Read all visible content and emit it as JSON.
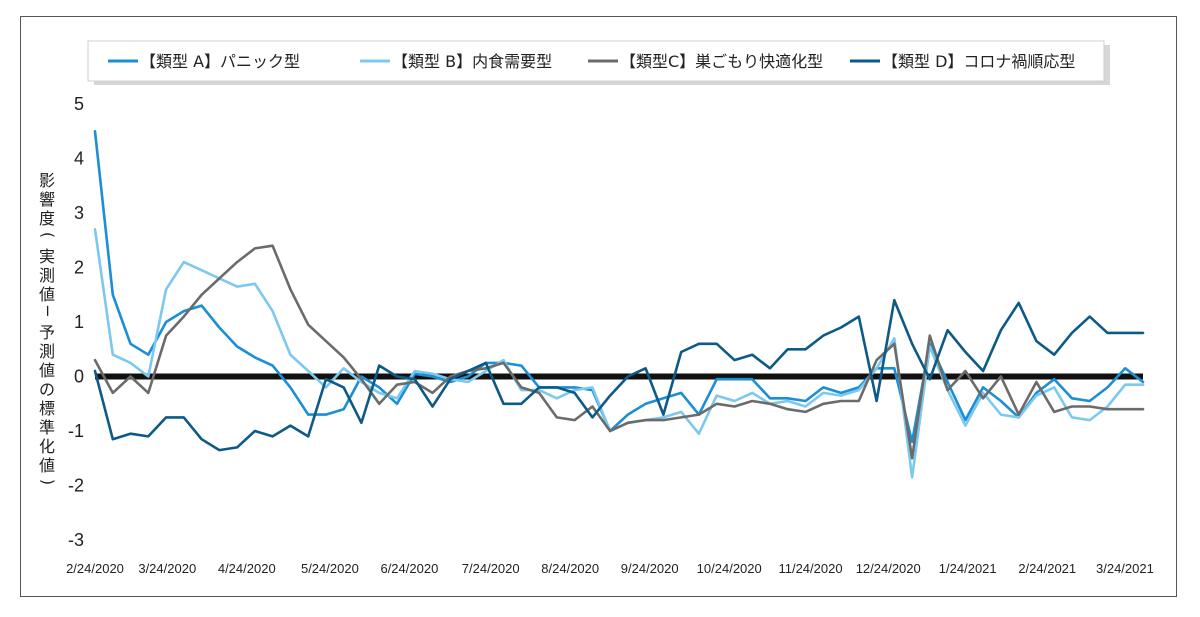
{
  "chart_data": {
    "type": "line",
    "ylabel": "影響度（実測値－予測値の標準化値）",
    "ylim": [
      -3,
      5
    ],
    "yticks": [
      "5",
      "4",
      "3",
      "2",
      "1",
      "0",
      "-1",
      "-2",
      "-3"
    ],
    "x_tick_labels": [
      "2/24/2020",
      "3/24/2020",
      "4/24/2020",
      "5/24/2020",
      "6/24/2020",
      "7/24/2020",
      "8/24/2020",
      "9/24/2020",
      "10/24/2020",
      "11/24/2020",
      "12/24/2020",
      "1/24/2021",
      "2/24/2021",
      "3/24/2021"
    ],
    "x_tick_weeks": [
      0,
      4,
      8.4,
      13,
      17.4,
      21.9,
      26.3,
      30.7,
      35.1,
      39.6,
      43.9,
      48.3,
      52.7,
      57
    ],
    "x_range": [
      0,
      58
    ],
    "grid": false,
    "legend": "top-center",
    "zero_line": true,
    "series": [
      {
        "name": "【類型 A】パニック型",
        "color": "#1a8fd6",
        "values": [
          4.5,
          1.5,
          0.6,
          0.4,
          1.0,
          1.2,
          1.3,
          0.9,
          0.55,
          0.35,
          0.2,
          -0.2,
          -0.7,
          -0.7,
          -0.6,
          0.0,
          -0.2,
          -0.5,
          0.05,
          0.0,
          -0.1,
          0.0,
          0.25,
          0.25,
          0.2,
          -0.2,
          -0.2,
          -0.2,
          -0.25,
          -1.0,
          -0.7,
          -0.5,
          -0.4,
          -0.3,
          -0.7,
          -0.05,
          -0.05,
          -0.05,
          -0.4,
          -0.4,
          -0.45,
          -0.2,
          -0.3,
          -0.2,
          0.15,
          0.15,
          -1.2,
          0.6,
          -0.1,
          -0.8,
          -0.2,
          -0.45,
          -0.75,
          -0.3,
          -0.05,
          -0.4,
          -0.45,
          -0.2,
          0.15,
          -0.1
        ]
      },
      {
        "name": "【類型 B】内食需要型",
        "color": "#7cc8ee",
        "values": [
          2.7,
          0.4,
          0.25,
          0.0,
          1.6,
          2.1,
          1.95,
          1.8,
          1.65,
          1.7,
          1.2,
          0.4,
          0.1,
          -0.2,
          0.15,
          -0.1,
          -0.3,
          -0.4,
          0.1,
          0.05,
          -0.05,
          -0.1,
          0.1,
          0.3,
          -0.25,
          -0.25,
          -0.4,
          -0.25,
          -0.2,
          -1.0,
          -0.85,
          -0.8,
          -0.75,
          -0.65,
          -1.05,
          -0.35,
          -0.45,
          -0.3,
          -0.5,
          -0.45,
          -0.55,
          -0.3,
          -0.35,
          -0.25,
          0.15,
          0.7,
          -1.85,
          0.55,
          -0.25,
          -0.9,
          -0.3,
          -0.7,
          -0.75,
          -0.35,
          -0.2,
          -0.75,
          -0.8,
          -0.55,
          -0.15,
          -0.15
        ]
      },
      {
        "name": "【類型C】巣ごもり快適化型",
        "color": "#6b6b6b",
        "values": [
          0.3,
          -0.3,
          0.0,
          -0.3,
          0.75,
          1.1,
          1.5,
          1.8,
          2.1,
          2.35,
          2.4,
          1.6,
          0.95,
          0.65,
          0.35,
          -0.05,
          -0.5,
          -0.15,
          -0.1,
          -0.3,
          0.0,
          0.1,
          0.15,
          0.25,
          -0.2,
          -0.3,
          -0.75,
          -0.8,
          -0.55,
          -1.0,
          -0.85,
          -0.8,
          -0.8,
          -0.75,
          -0.7,
          -0.5,
          -0.55,
          -0.45,
          -0.5,
          -0.6,
          -0.65,
          -0.5,
          -0.45,
          -0.45,
          0.3,
          0.6,
          -1.5,
          0.75,
          -0.25,
          0.1,
          -0.4,
          0.0,
          -0.7,
          -0.1,
          -0.65,
          -0.55,
          -0.55,
          -0.6,
          -0.6,
          -0.6
        ]
      },
      {
        "name": "【類型 D】コロナ禍順応型",
        "color": "#0e5a86",
        "values": [
          0.1,
          -1.15,
          -1.05,
          -1.1,
          -0.75,
          -0.75,
          -1.15,
          -1.35,
          -1.3,
          -1.0,
          -1.1,
          -0.9,
          -1.1,
          -0.05,
          -0.2,
          -0.85,
          0.2,
          0.0,
          -0.05,
          -0.55,
          -0.05,
          0.1,
          0.25,
          -0.5,
          -0.5,
          -0.2,
          -0.2,
          -0.3,
          -0.75,
          -0.35,
          0.0,
          0.15,
          -0.7,
          0.45,
          0.6,
          0.6,
          0.3,
          0.4,
          0.15,
          0.5,
          0.5,
          0.75,
          0.9,
          1.1,
          -0.45,
          1.4,
          0.6,
          -0.05,
          0.85,
          0.45,
          0.1,
          0.85,
          1.35,
          0.65,
          0.4,
          0.8,
          1.1,
          0.8,
          0.8,
          0.8
        ]
      }
    ]
  }
}
